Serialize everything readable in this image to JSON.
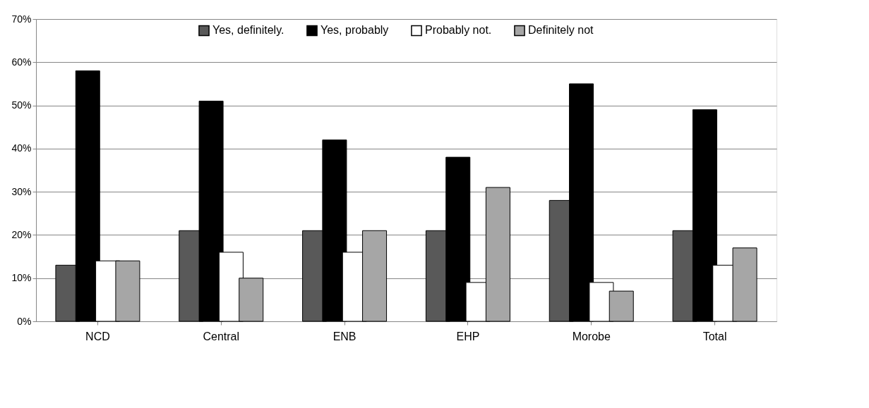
{
  "chart_data": {
    "type": "bar",
    "categories": [
      "NCD",
      "Central",
      "ENB",
      "EHP",
      "Morobe",
      "Total"
    ],
    "series": [
      {
        "name": "Yes, definitely.",
        "color": "#595959",
        "values": [
          13,
          21,
          21,
          21,
          28,
          21
        ]
      },
      {
        "name": "Yes, probably",
        "color": "#000000",
        "values": [
          58,
          51,
          42,
          38,
          55,
          49
        ]
      },
      {
        "name": "Probably not.",
        "color": "#ffffff",
        "values": [
          14,
          16,
          16,
          9,
          9,
          13
        ]
      },
      {
        "name": "Definitely not",
        "color": "#a6a6a6",
        "values": [
          14,
          10,
          21,
          31,
          7,
          17
        ]
      }
    ],
    "ylim": [
      0,
      70
    ],
    "yticks": [
      {
        "value": 0,
        "label": "0%"
      },
      {
        "value": 10,
        "label": "10%"
      },
      {
        "value": 20,
        "label": "20%"
      },
      {
        "value": 30,
        "label": "30%"
      },
      {
        "value": 40,
        "label": "40%"
      },
      {
        "value": 50,
        "label": "50%"
      },
      {
        "value": 60,
        "label": "60%"
      },
      {
        "value": 70,
        "label": "70%"
      }
    ],
    "grid": "y",
    "legend": "top"
  }
}
